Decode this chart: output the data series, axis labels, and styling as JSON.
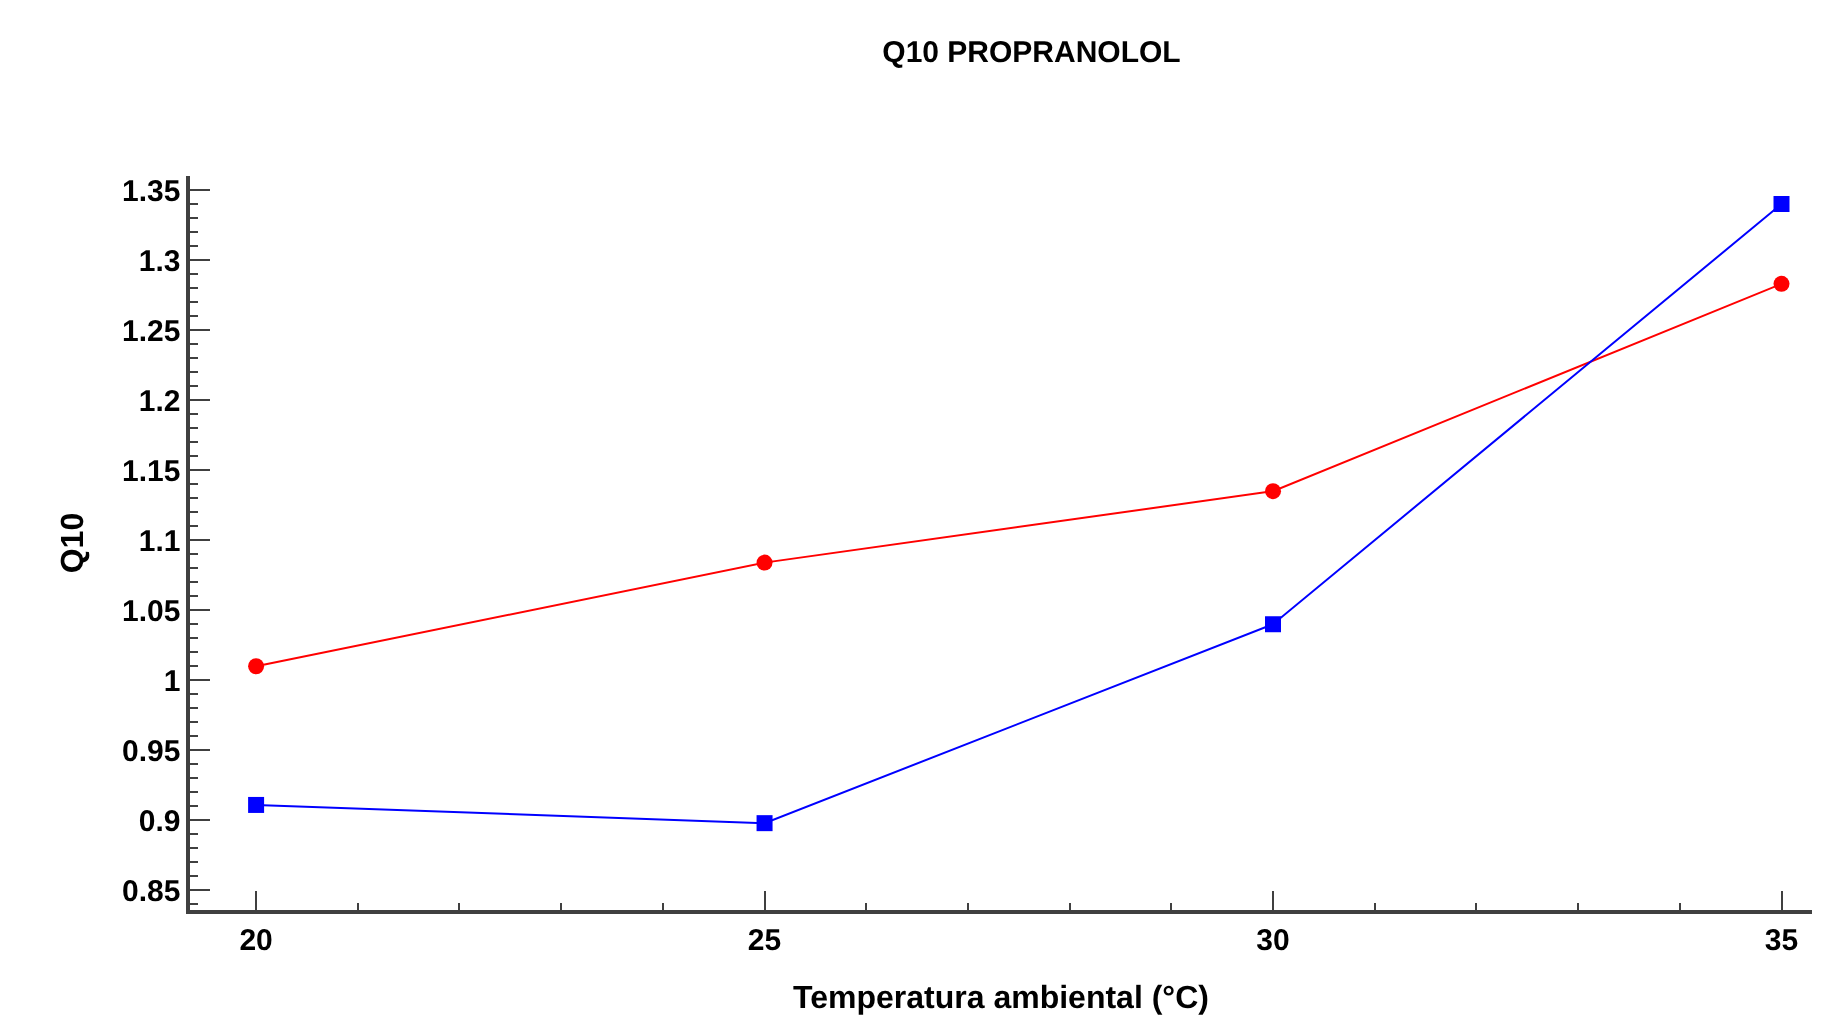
{
  "chart_data": {
    "type": "line",
    "title": "Q10 PROPRANOLOL",
    "xlabel": "Temperatura ambiental (°C)",
    "ylabel": "Q10",
    "x": [
      20,
      25,
      30,
      35
    ],
    "series": [
      {
        "color": "#ff0000",
        "values": [
          1.01,
          1.084,
          1.135,
          1.283
        ],
        "marker": "circle"
      },
      {
        "color": "#0000ff",
        "values": [
          0.911,
          0.898,
          1.04,
          1.34
        ],
        "marker": "square"
      }
    ],
    "xlim": [
      19.35,
      35.3
    ],
    "xticks": [
      20,
      25,
      30,
      35
    ],
    "ylim": [
      0.836,
      1.36
    ],
    "yticks": [
      0.85,
      0.9,
      0.95,
      1,
      1.05,
      1.1,
      1.15,
      1.2,
      1.25,
      1.3,
      1.35
    ],
    "legend": false,
    "line_style": "solid"
  }
}
